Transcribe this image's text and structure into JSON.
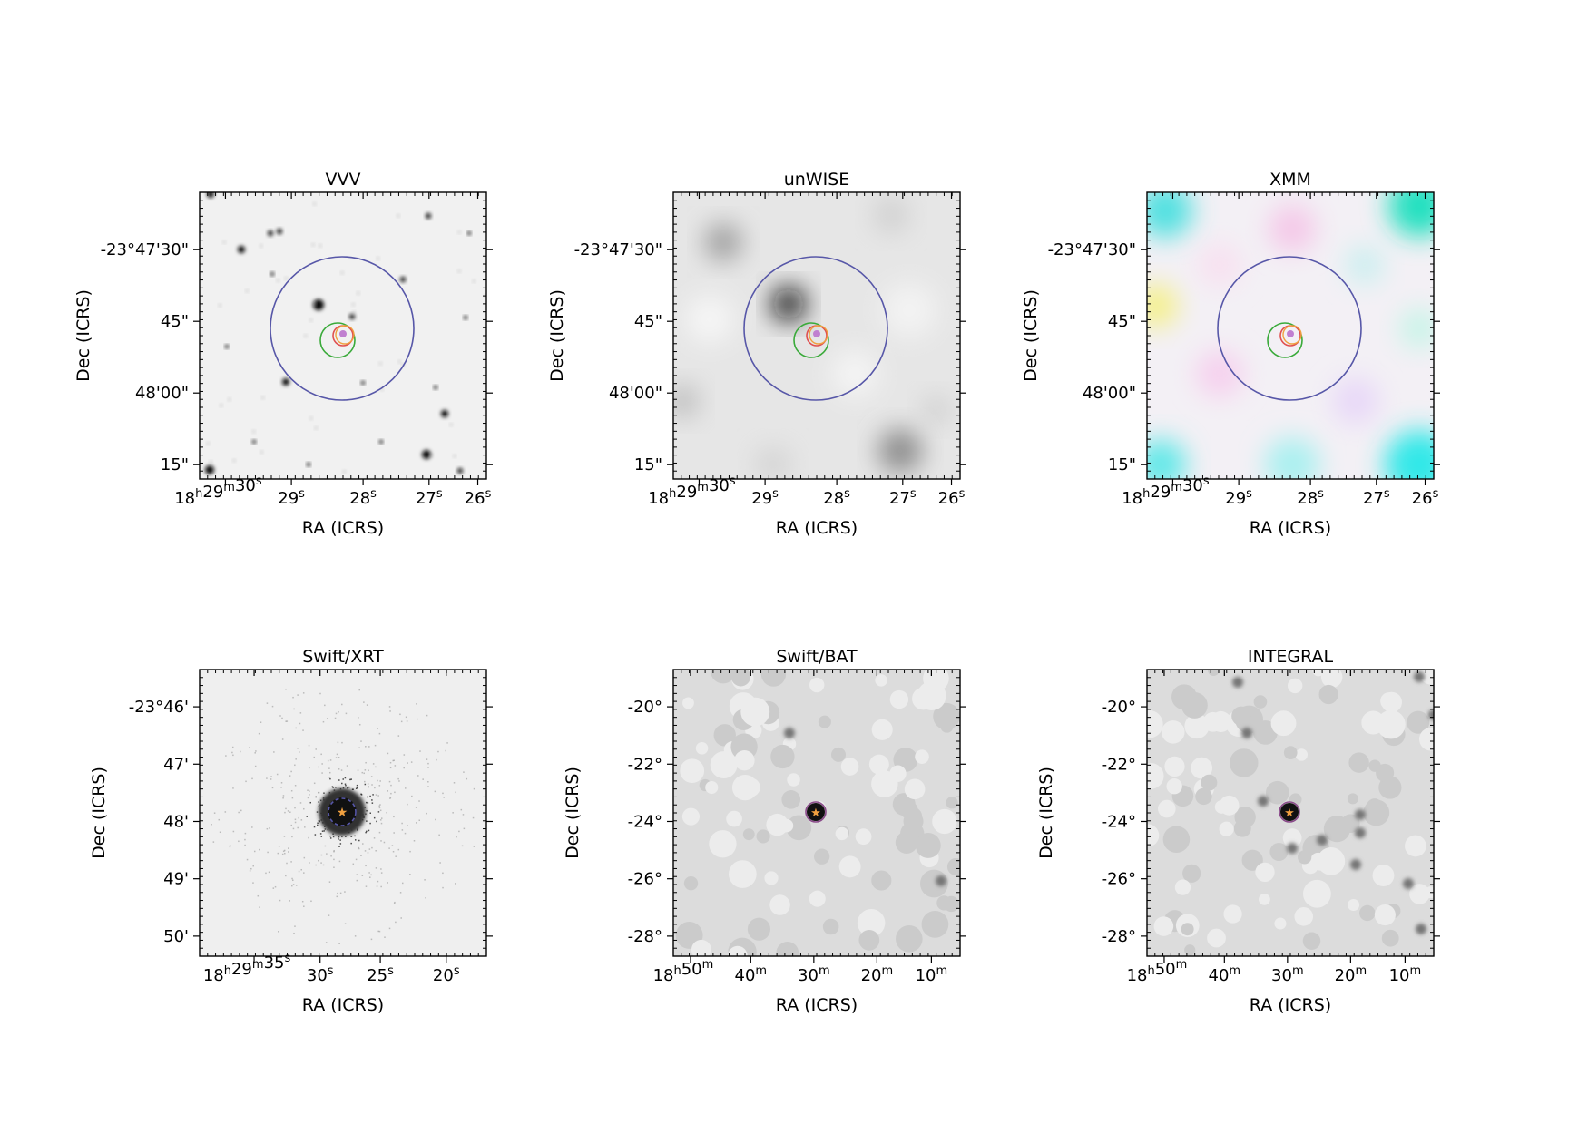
{
  "panels": [
    {
      "id": "vvv",
      "title": "VVV",
      "xlabel": "RA (ICRS)",
      "ylabel": "Dec (ICRS)",
      "xticks": [
        "18h29m30s",
        "29s",
        "28s",
        "27s",
        "26s"
      ],
      "yticks": [
        "-23°47'30\"",
        "45\"",
        "48'00\"",
        "15\""
      ]
    },
    {
      "id": "unwise",
      "title": "unWISE",
      "xlabel": "RA (ICRS)",
      "ylabel": "Dec (ICRS)",
      "xticks": [
        "18h29m30s",
        "29s",
        "28s",
        "27s",
        "26s"
      ],
      "yticks": [
        "-23°47'30\"",
        "45\"",
        "48'00\"",
        "15\""
      ]
    },
    {
      "id": "xmm",
      "title": "XMM",
      "xlabel": "RA (ICRS)",
      "ylabel": "Dec (ICRS)",
      "xticks": [
        "18h29m30s",
        "29s",
        "28s",
        "27s",
        "26s"
      ],
      "yticks": [
        "-23°47'30\"",
        "45\"",
        "48'00\"",
        "15\""
      ]
    },
    {
      "id": "swift-xrt",
      "title": "Swift/XRT",
      "xlabel": "RA (ICRS)",
      "ylabel": "Dec (ICRS)",
      "xticks": [
        "18h29m35s",
        "30s",
        "25s",
        "20s"
      ],
      "yticks": [
        "-23°46'",
        "47'",
        "48'",
        "49'",
        "50'"
      ]
    },
    {
      "id": "swift-bat",
      "title": "Swift/BAT",
      "xlabel": "RA (ICRS)",
      "ylabel": "Dec (ICRS)",
      "xticks": [
        "18h50m",
        "40m",
        "30m",
        "20m",
        "10m"
      ],
      "yticks": [
        "-20°",
        "-22°",
        "-24°",
        "-26°",
        "-28°"
      ]
    },
    {
      "id": "integral",
      "title": "INTEGRAL",
      "xlabel": "RA (ICRS)",
      "ylabel": "Dec (ICRS)",
      "xticks": [
        "18h50m",
        "40m",
        "30m",
        "20m",
        "10m"
      ],
      "yticks": [
        "-20°",
        "-22°",
        "-24°",
        "-26°",
        "-28°"
      ]
    }
  ]
}
